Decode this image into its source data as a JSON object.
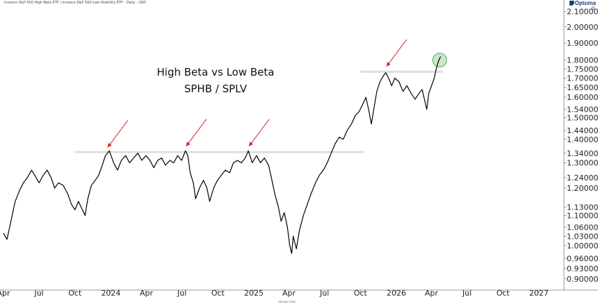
{
  "header": {
    "caption": "Invesco S&P 500 High Beta ETF / Invesco S&P 500 Low Volatility ETF - Daily - USD",
    "logo_text": "Optuma"
  },
  "footer": {
    "date_label": "24th Apr 2026"
  },
  "chart_data": {
    "type": "line",
    "title": "High Beta vs Low Beta",
    "subtitle": "SPHB / SPLV",
    "xlabel": "",
    "ylabel": "",
    "y_scale": "log",
    "ylim": [
      0.88,
      2.14
    ],
    "xlim": [
      "2023-04-01",
      "2027-02-28"
    ],
    "x_ticks": [
      {
        "label": "Apr",
        "date": "2023-04-01"
      },
      {
        "label": "Jul",
        "date": "2023-07-01"
      },
      {
        "label": "Oct",
        "date": "2023-10-01"
      },
      {
        "label": "2024",
        "date": "2024-01-01"
      },
      {
        "label": "Apr",
        "date": "2024-04-01"
      },
      {
        "label": "Jul",
        "date": "2024-07-01"
      },
      {
        "label": "Oct",
        "date": "2024-10-01"
      },
      {
        "label": "2025",
        "date": "2025-01-01"
      },
      {
        "label": "Apr",
        "date": "2025-04-01"
      },
      {
        "label": "Jul",
        "date": "2025-07-01"
      },
      {
        "label": "Oct",
        "date": "2025-10-01"
      },
      {
        "label": "2026",
        "date": "2026-01-01"
      },
      {
        "label": "Apr",
        "date": "2026-04-01"
      },
      {
        "label": "Jul",
        "date": "2026-07-01"
      },
      {
        "label": "Oct",
        "date": "2026-10-01"
      },
      {
        "label": "2027",
        "date": "2027-01-01"
      }
    ],
    "y_ticks": [
      {
        "label": "2.10000",
        "value": 2.1
      },
      {
        "label": "2.00000",
        "value": 2.0
      },
      {
        "label": "1.90000",
        "value": 1.9
      },
      {
        "label": "1.80000",
        "value": 1.8
      },
      {
        "label": "1.75000",
        "value": 1.75
      },
      {
        "label": "1.70000",
        "value": 1.7
      },
      {
        "label": "1.65000",
        "value": 1.65
      },
      {
        "label": "1.60000",
        "value": 1.6
      },
      {
        "label": "1.54000",
        "value": 1.54
      },
      {
        "label": "1.50000",
        "value": 1.5
      },
      {
        "label": "1.44000",
        "value": 1.44
      },
      {
        "label": "1.40000",
        "value": 1.4
      },
      {
        "label": "1.34000",
        "value": 1.34
      },
      {
        "label": "1.30000",
        "value": 1.3
      },
      {
        "label": "1.24000",
        "value": 1.24
      },
      {
        "label": "1.20000",
        "value": 1.2
      },
      {
        "label": "1.13000",
        "value": 1.13
      },
      {
        "label": "1.10000",
        "value": 1.1
      },
      {
        "label": "1.06000",
        "value": 1.06
      },
      {
        "label": "1.03000",
        "value": 1.03
      },
      {
        "label": "1.00000",
        "value": 1.0
      },
      {
        "label": "0.96000",
        "value": 0.96
      },
      {
        "label": "0.93000",
        "value": 0.93
      },
      {
        "label": "0.90000",
        "value": 0.9
      }
    ],
    "series": [
      {
        "color": "#000000",
        "points": [
          [
            "2023-04-01",
            1.04
          ],
          [
            "2023-04-10",
            1.02
          ],
          [
            "2023-04-20",
            1.08
          ],
          [
            "2023-05-01",
            1.15
          ],
          [
            "2023-05-12",
            1.19
          ],
          [
            "2023-05-22",
            1.22
          ],
          [
            "2023-06-01",
            1.24
          ],
          [
            "2023-06-12",
            1.27
          ],
          [
            "2023-06-20",
            1.25
          ],
          [
            "2023-07-01",
            1.22
          ],
          [
            "2023-07-12",
            1.25
          ],
          [
            "2023-07-22",
            1.27
          ],
          [
            "2023-08-01",
            1.24
          ],
          [
            "2023-08-10",
            1.2
          ],
          [
            "2023-08-20",
            1.22
          ],
          [
            "2023-09-01",
            1.21
          ],
          [
            "2023-09-12",
            1.18
          ],
          [
            "2023-09-22",
            1.14
          ],
          [
            "2023-10-01",
            1.12
          ],
          [
            "2023-10-10",
            1.15
          ],
          [
            "2023-10-20",
            1.12
          ],
          [
            "2023-10-27",
            1.1
          ],
          [
            "2023-11-03",
            1.16
          ],
          [
            "2023-11-12",
            1.21
          ],
          [
            "2023-11-22",
            1.23
          ],
          [
            "2023-12-01",
            1.25
          ],
          [
            "2023-12-10",
            1.29
          ],
          [
            "2023-12-18",
            1.33
          ],
          [
            "2023-12-28",
            1.35
          ],
          [
            "2024-01-08",
            1.3
          ],
          [
            "2024-01-18",
            1.27
          ],
          [
            "2024-01-28",
            1.31
          ],
          [
            "2024-02-08",
            1.33
          ],
          [
            "2024-02-18",
            1.3
          ],
          [
            "2024-02-28",
            1.32
          ],
          [
            "2024-03-10",
            1.34
          ],
          [
            "2024-03-20",
            1.31
          ],
          [
            "2024-03-31",
            1.33
          ],
          [
            "2024-04-10",
            1.31
          ],
          [
            "2024-04-20",
            1.28
          ],
          [
            "2024-04-30",
            1.31
          ],
          [
            "2024-05-10",
            1.32
          ],
          [
            "2024-05-20",
            1.29
          ],
          [
            "2024-05-31",
            1.31
          ],
          [
            "2024-06-10",
            1.3
          ],
          [
            "2024-06-20",
            1.33
          ],
          [
            "2024-06-30",
            1.31
          ],
          [
            "2024-07-10",
            1.35
          ],
          [
            "2024-07-16",
            1.33
          ],
          [
            "2024-07-22",
            1.26
          ],
          [
            "2024-07-30",
            1.22
          ],
          [
            "2024-08-05",
            1.16
          ],
          [
            "2024-08-15",
            1.2
          ],
          [
            "2024-08-25",
            1.23
          ],
          [
            "2024-09-03",
            1.2
          ],
          [
            "2024-09-10",
            1.15
          ],
          [
            "2024-09-20",
            1.2
          ],
          [
            "2024-09-30",
            1.23
          ],
          [
            "2024-10-10",
            1.25
          ],
          [
            "2024-10-20",
            1.27
          ],
          [
            "2024-10-31",
            1.26
          ],
          [
            "2024-11-10",
            1.3
          ],
          [
            "2024-11-20",
            1.31
          ],
          [
            "2024-11-30",
            1.3
          ],
          [
            "2024-12-10",
            1.32
          ],
          [
            "2024-12-18",
            1.35
          ],
          [
            "2024-12-28",
            1.3
          ],
          [
            "2025-01-08",
            1.33
          ],
          [
            "2025-01-18",
            1.3
          ],
          [
            "2025-01-28",
            1.32
          ],
          [
            "2025-02-08",
            1.29
          ],
          [
            "2025-02-15",
            1.24
          ],
          [
            "2025-02-25",
            1.17
          ],
          [
            "2025-03-05",
            1.13
          ],
          [
            "2025-03-12",
            1.08
          ],
          [
            "2025-03-20",
            1.11
          ],
          [
            "2025-03-28",
            1.06
          ],
          [
            "2025-04-03",
            1.0
          ],
          [
            "2025-04-08",
            0.975
          ],
          [
            "2025-04-12",
            1.03
          ],
          [
            "2025-04-20",
            0.99
          ],
          [
            "2025-04-28",
            1.05
          ],
          [
            "2025-05-08",
            1.1
          ],
          [
            "2025-05-18",
            1.14
          ],
          [
            "2025-05-28",
            1.18
          ],
          [
            "2025-06-08",
            1.22
          ],
          [
            "2025-06-18",
            1.25
          ],
          [
            "2025-06-28",
            1.27
          ],
          [
            "2025-07-08",
            1.3
          ],
          [
            "2025-07-18",
            1.34
          ],
          [
            "2025-07-28",
            1.38
          ],
          [
            "2025-08-08",
            1.41
          ],
          [
            "2025-08-18",
            1.4
          ],
          [
            "2025-08-28",
            1.44
          ],
          [
            "2025-09-08",
            1.47
          ],
          [
            "2025-09-18",
            1.51
          ],
          [
            "2025-09-28",
            1.53
          ],
          [
            "2025-10-08",
            1.57
          ],
          [
            "2025-10-15",
            1.6
          ],
          [
            "2025-10-22",
            1.54
          ],
          [
            "2025-10-29",
            1.47
          ],
          [
            "2025-11-05",
            1.55
          ],
          [
            "2025-11-12",
            1.63
          ],
          [
            "2025-11-20",
            1.68
          ],
          [
            "2025-11-28",
            1.71
          ],
          [
            "2025-12-05",
            1.73
          ],
          [
            "2025-12-12",
            1.7
          ],
          [
            "2025-12-20",
            1.66
          ],
          [
            "2025-12-28",
            1.7
          ],
          [
            "2026-01-08",
            1.68
          ],
          [
            "2026-01-18",
            1.63
          ],
          [
            "2026-01-28",
            1.66
          ],
          [
            "2026-02-08",
            1.62
          ],
          [
            "2026-02-18",
            1.59
          ],
          [
            "2026-02-28",
            1.62
          ],
          [
            "2026-03-08",
            1.64
          ],
          [
            "2026-03-15",
            1.58
          ],
          [
            "2026-03-20",
            1.54
          ],
          [
            "2026-03-25",
            1.62
          ],
          [
            "2026-04-01",
            1.66
          ],
          [
            "2026-04-08",
            1.7
          ],
          [
            "2026-04-14",
            1.76
          ],
          [
            "2026-04-20",
            1.8
          ],
          [
            "2026-04-24",
            1.82
          ]
        ]
      }
    ],
    "annotations": {
      "resistance_lines": [
        {
          "value": 1.345,
          "x_start": "2023-10-01",
          "x_end": "2025-10-10",
          "color": "#dddddd"
        },
        {
          "value": 1.735,
          "x_start": "2025-10-01",
          "x_end": "2026-04-30",
          "color": "#dddddd"
        }
      ],
      "arrows": [
        {
          "date": "2023-12-22",
          "value": 1.35,
          "color": "#e02020"
        },
        {
          "date": "2024-07-10",
          "value": 1.355,
          "color": "#e02020"
        },
        {
          "date": "2024-12-18",
          "value": 1.355,
          "color": "#e02020"
        },
        {
          "date": "2025-12-05",
          "value": 1.745,
          "color": "#e02020"
        }
      ],
      "highlight_circle": {
        "date": "2026-04-22",
        "value": 1.8,
        "color": "#4caf50"
      }
    }
  }
}
